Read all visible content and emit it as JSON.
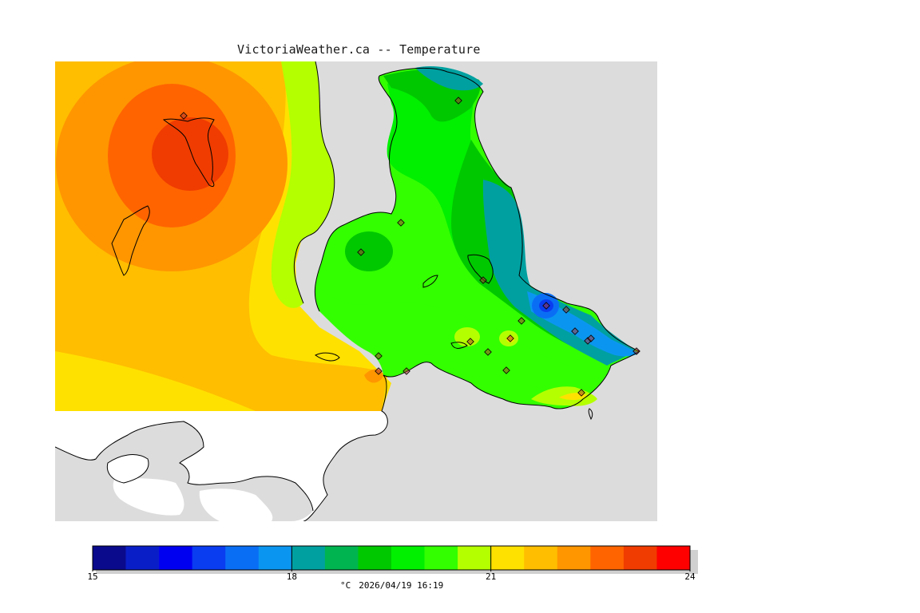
{
  "title": "VictoriaWeather.ca -- Temperature",
  "colorbar": {
    "colors": [
      "#0a0a8c",
      "#0a1ec8",
      "#0000f0",
      "#0a3cf0",
      "#0a6ef5",
      "#0a96f0",
      "#00a0a0",
      "#00b450",
      "#00c800",
      "#00f000",
      "#33ff00",
      "#b4ff00",
      "#ffe100",
      "#ffbe00",
      "#ff9600",
      "#ff6400",
      "#f03c00",
      "#ff0000"
    ],
    "min": 15,
    "max": 24,
    "ticks": [
      {
        "value": 15,
        "label": "15"
      },
      {
        "value": 18,
        "label": "18"
      },
      {
        "value": 21,
        "label": "21"
      },
      {
        "value": 24,
        "label": "24"
      }
    ]
  },
  "unit": "°C",
  "timestamp": "2026/04/19 16:19"
}
